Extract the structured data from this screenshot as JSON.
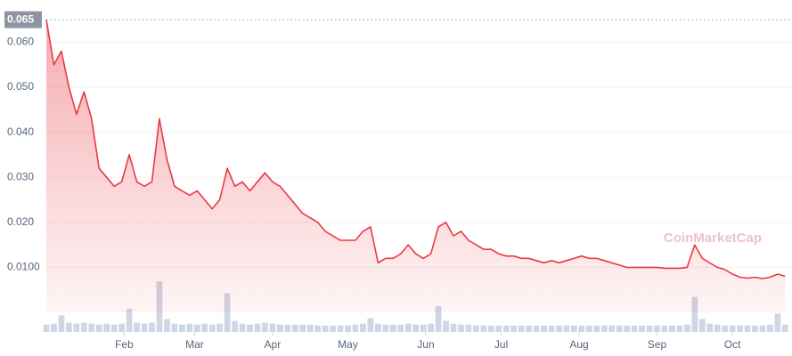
{
  "chart_data": {
    "type": "line",
    "x": [
      0,
      3,
      6,
      9,
      12,
      15,
      18,
      21,
      24,
      27,
      30,
      33,
      36,
      39,
      42,
      45,
      48,
      51,
      54,
      57,
      60,
      63,
      66,
      69,
      72,
      75,
      78,
      81,
      84,
      87,
      90,
      93,
      96,
      99,
      102,
      105,
      108,
      111,
      114,
      117,
      120,
      123,
      126,
      129,
      132,
      135,
      138,
      141,
      144,
      147,
      150,
      153,
      156,
      159,
      162,
      165,
      168,
      171,
      174,
      177,
      180,
      183,
      186,
      189,
      192,
      195,
      198,
      201,
      204,
      207,
      210,
      213,
      216,
      219,
      222,
      225,
      228,
      231,
      234,
      237,
      240,
      243,
      246,
      249,
      252,
      255,
      258,
      261,
      264,
      267,
      270,
      273,
      276,
      279,
      282,
      285,
      288,
      291,
      294
    ],
    "series": [
      {
        "name": "Price",
        "color": "#ea3943",
        "values": [
          0.065,
          0.055,
          0.058,
          0.05,
          0.044,
          0.049,
          0.043,
          0.032,
          0.03,
          0.028,
          0.029,
          0.035,
          0.029,
          0.028,
          0.029,
          0.043,
          0.034,
          0.028,
          0.027,
          0.026,
          0.027,
          0.025,
          0.023,
          0.025,
          0.032,
          0.028,
          0.029,
          0.027,
          0.029,
          0.031,
          0.029,
          0.028,
          0.026,
          0.024,
          0.022,
          0.021,
          0.02,
          0.018,
          0.017,
          0.016,
          0.016,
          0.016,
          0.018,
          0.019,
          0.011,
          0.012,
          0.012,
          0.013,
          0.015,
          0.013,
          0.012,
          0.013,
          0.019,
          0.02,
          0.017,
          0.018,
          0.016,
          0.015,
          0.014,
          0.014,
          0.013,
          0.0125,
          0.0125,
          0.012,
          0.012,
          0.0115,
          0.011,
          0.0115,
          0.011,
          0.0115,
          0.012,
          0.0125,
          0.012,
          0.012,
          0.0115,
          0.011,
          0.0105,
          0.01,
          0.01,
          0.01,
          0.01,
          0.01,
          0.0098,
          0.0098,
          0.0098,
          0.01,
          0.015,
          0.012,
          0.011,
          0.01,
          0.0095,
          0.0085,
          0.0078,
          0.0076,
          0.0078,
          0.0075,
          0.0078,
          0.0085,
          0.008
        ]
      },
      {
        "name": "Volume",
        "color": "#cfd6e4",
        "values": [
          8,
          9,
          18,
          10,
          9,
          10,
          9,
          8,
          9,
          8,
          9,
          25,
          10,
          9,
          10,
          55,
          14,
          9,
          8,
          9,
          8,
          9,
          8,
          9,
          42,
          12,
          9,
          8,
          9,
          10,
          9,
          8,
          8,
          8,
          8,
          8,
          7,
          7,
          7,
          7,
          7,
          8,
          9,
          15,
          9,
          8,
          8,
          8,
          9,
          8,
          8,
          9,
          28,
          12,
          9,
          8,
          8,
          7,
          7,
          7,
          7,
          7,
          7,
          7,
          7,
          7,
          7,
          7,
          7,
          7,
          7,
          7,
          7,
          7,
          7,
          7,
          7,
          7,
          7,
          7,
          7,
          7,
          7,
          7,
          7,
          8,
          38,
          14,
          9,
          8,
          7,
          7,
          7,
          7,
          7,
          7,
          8,
          20,
          8
        ]
      }
    ],
    "xlim": [
      0,
      296
    ],
    "xticks": [
      {
        "value": 31,
        "label": "Feb"
      },
      {
        "value": 59,
        "label": "Mar"
      },
      {
        "value": 90,
        "label": "Apr"
      },
      {
        "value": 120,
        "label": "May"
      },
      {
        "value": 151,
        "label": "Jun"
      },
      {
        "value": 181,
        "label": "Jul"
      },
      {
        "value": 212,
        "label": "Aug"
      },
      {
        "value": 243,
        "label": "Sep"
      },
      {
        "value": 273,
        "label": "Oct"
      }
    ],
    "ylim": [
      0,
      0.0666
    ],
    "yticks": [
      {
        "value": 0.01,
        "label": "0.0100"
      },
      {
        "value": 0.02,
        "label": "0.020"
      },
      {
        "value": 0.03,
        "label": "0.030"
      },
      {
        "value": 0.04,
        "label": "0.040"
      },
      {
        "value": 0.05,
        "label": "0.050"
      },
      {
        "value": 0.06,
        "label": "0.060"
      }
    ],
    "max_line": {
      "value": 0.065,
      "label": "0.065"
    },
    "grid": true,
    "watermark": "CoinMarketCap"
  }
}
